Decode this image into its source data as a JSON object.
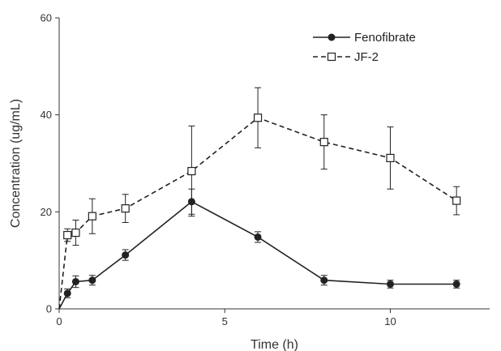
{
  "chart_data": {
    "type": "line",
    "xlabel": "Time (h)",
    "ylabel": "Concentration (ug/mL)",
    "xlim": [
      0,
      13
    ],
    "ylim": [
      0,
      60
    ],
    "x_ticks": [
      0,
      5,
      10
    ],
    "y_ticks": [
      0,
      20,
      40,
      60
    ],
    "grid": false,
    "legend_position": "top-right",
    "series": [
      {
        "name": "Fenofibrate",
        "marker": "filled-circle",
        "line_style": "solid",
        "color": "#222222",
        "points": [
          {
            "x": 0,
            "y": 0,
            "err": 0
          },
          {
            "x": 0.25,
            "y": 3.2,
            "err": 0.9
          },
          {
            "x": 0.5,
            "y": 5.6,
            "err": 1.2
          },
          {
            "x": 1,
            "y": 5.9,
            "err": 1.0
          },
          {
            "x": 2,
            "y": 11.1,
            "err": 1.1
          },
          {
            "x": 4,
            "y": 22.1,
            "err": 2.6
          },
          {
            "x": 6,
            "y": 14.8,
            "err": 1.1
          },
          {
            "x": 8,
            "y": 5.9,
            "err": 1.0
          },
          {
            "x": 10,
            "y": 5.1,
            "err": 0.8
          },
          {
            "x": 12,
            "y": 5.1,
            "err": 0.8
          }
        ]
      },
      {
        "name": "JF-2",
        "marker": "open-square",
        "line_style": "dashed",
        "color": "#222222",
        "points": [
          {
            "x": 0,
            "y": 0,
            "err": 0
          },
          {
            "x": 0.25,
            "y": 15.2,
            "err": 1.3
          },
          {
            "x": 0.5,
            "y": 15.7,
            "err": 2.6
          },
          {
            "x": 1,
            "y": 19.1,
            "err": 3.6
          },
          {
            "x": 2,
            "y": 20.7,
            "err": 2.9
          },
          {
            "x": 4,
            "y": 28.4,
            "err": 9.3
          },
          {
            "x": 6,
            "y": 39.4,
            "err": 6.2
          },
          {
            "x": 8,
            "y": 34.4,
            "err": 5.6
          },
          {
            "x": 10,
            "y": 31.1,
            "err": 6.4
          },
          {
            "x": 12,
            "y": 22.3,
            "err": 2.9
          }
        ]
      }
    ]
  }
}
